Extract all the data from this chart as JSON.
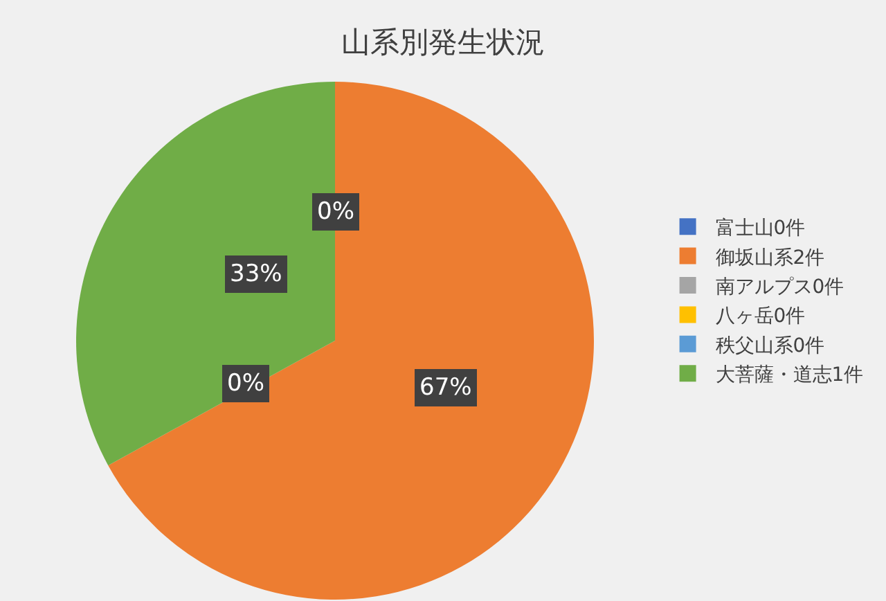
{
  "chart_data": {
    "type": "pie",
    "title": "山系別発生状況",
    "categories": [
      "富士山0件",
      "御坂山系2件",
      "南アルプス0件",
      "八ヶ岳0件",
      "秩父山系0件",
      "大菩薩・道志1件"
    ],
    "values": [
      0,
      67,
      0,
      0,
      0,
      33
    ],
    "colors": [
      "#4472c4",
      "#ed7d31",
      "#a5a5a5",
      "#ffc000",
      "#5b9bd5",
      "#70ad47"
    ],
    "value_labels": [
      "0%",
      "67%",
      "0%",
      null,
      null,
      "33%"
    ],
    "legend": "right"
  }
}
